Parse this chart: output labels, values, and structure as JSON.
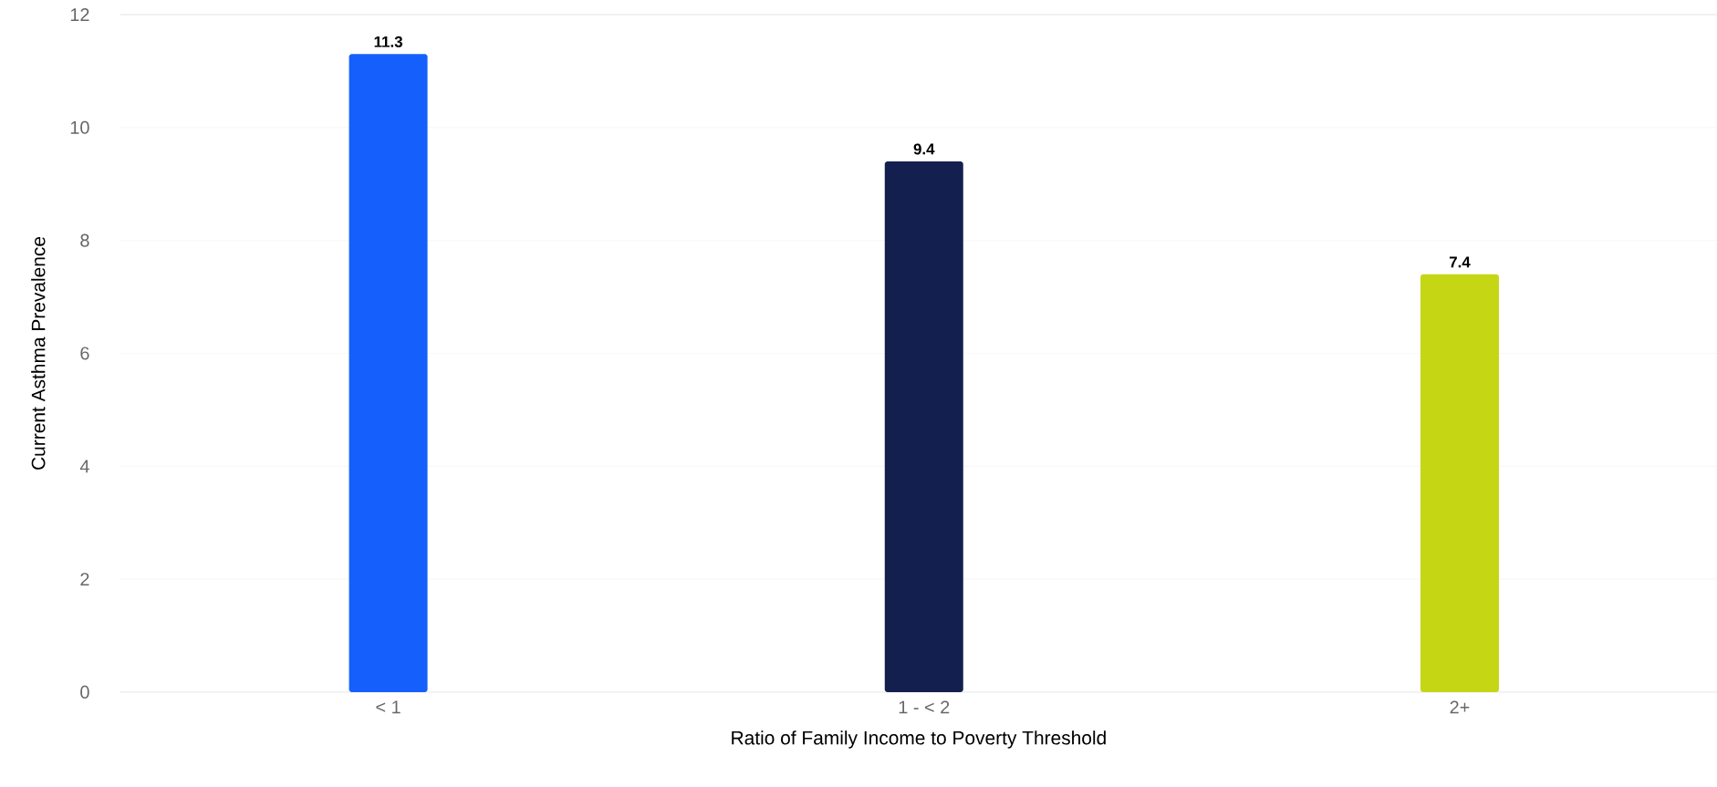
{
  "chart_data": {
    "type": "bar",
    "xlabel": "Ratio of Family Income to Poverty Threshold",
    "ylabel": "Current Asthma Prevalence",
    "categories": [
      "< 1",
      "1 - < 2",
      "2+"
    ],
    "values": [
      11.3,
      9.4,
      7.4
    ],
    "colors": [
      "#1560fc",
      "#13204f",
      "#c5d614"
    ],
    "ylim": [
      0,
      12
    ],
    "yticks": [
      0,
      2,
      4,
      6,
      8,
      10,
      12
    ],
    "grid": "y",
    "data_labels": true
  }
}
